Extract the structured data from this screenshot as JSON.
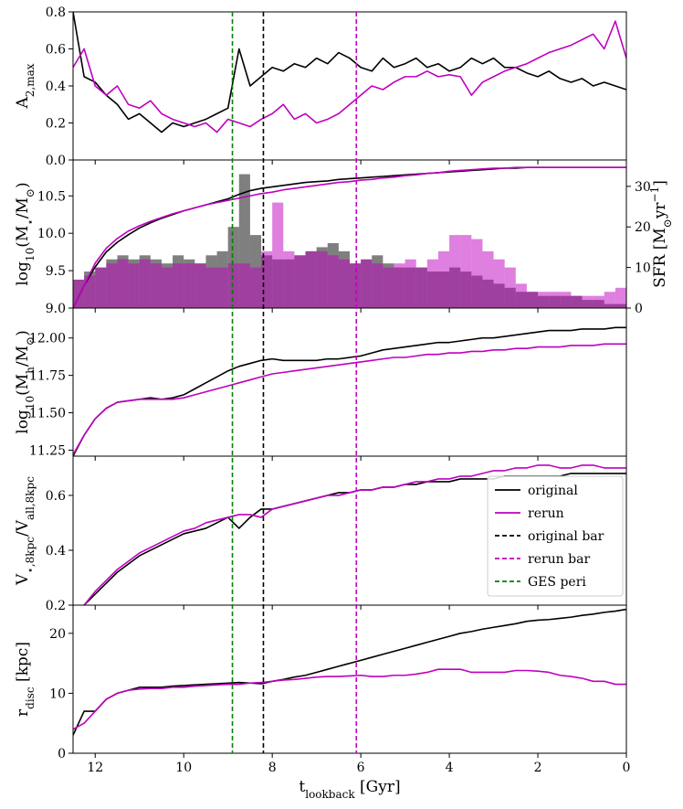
{
  "chart_data": [
    {
      "type": "line",
      "ylabel": [
        "A",
        {
          "text": "2,max",
          "shift": "sub"
        }
      ],
      "xlim": [
        12.5,
        0
      ],
      "ylim": [
        0,
        0.8
      ],
      "yticks": [
        {
          "value": 0,
          "label": "0.0"
        },
        0.2,
        0.4,
        0.6,
        0.8
      ],
      "x": [
        12.5,
        12.25,
        12,
        11.75,
        11.5,
        11.25,
        11,
        10.75,
        10.5,
        10.25,
        10,
        9.75,
        9.5,
        9.25,
        9,
        8.75,
        8.5,
        8.25,
        8,
        7.75,
        7.5,
        7.25,
        7,
        6.75,
        6.5,
        6.25,
        6,
        5.75,
        5.5,
        5.25,
        5,
        4.75,
        4.5,
        4.25,
        4,
        3.75,
        3.5,
        3.25,
        3,
        2.75,
        2.5,
        2.25,
        2,
        1.75,
        1.5,
        1.25,
        1,
        0.75,
        0.5,
        0.25,
        0
      ],
      "series": [
        {
          "color": "#000000",
          "values": [
            0.8,
            0.45,
            0.42,
            0.35,
            0.3,
            0.22,
            0.25,
            0.2,
            0.15,
            0.2,
            0.18,
            0.2,
            0.22,
            0.25,
            0.28,
            0.6,
            0.4,
            0.45,
            0.5,
            0.48,
            0.52,
            0.5,
            0.55,
            0.52,
            0.58,
            0.55,
            0.5,
            0.48,
            0.55,
            0.5,
            0.52,
            0.55,
            0.5,
            0.52,
            0.48,
            0.5,
            0.55,
            0.52,
            0.55,
            0.5,
            0.5,
            0.47,
            0.45,
            0.48,
            0.44,
            0.42,
            0.44,
            0.4,
            0.42,
            0.4,
            0.38
          ]
        },
        {
          "color": "#bf00bf",
          "values": [
            0.5,
            0.6,
            0.4,
            0.35,
            0.4,
            0.3,
            0.28,
            0.32,
            0.25,
            0.22,
            0.2,
            0.18,
            0.2,
            0.15,
            0.22,
            0.2,
            0.18,
            0.22,
            0.25,
            0.3,
            0.22,
            0.25,
            0.2,
            0.22,
            0.25,
            0.3,
            0.35,
            0.4,
            0.38,
            0.42,
            0.45,
            0.45,
            0.48,
            0.45,
            0.46,
            0.45,
            0.35,
            0.42,
            0.45,
            0.48,
            0.5,
            0.52,
            0.55,
            0.58,
            0.6,
            0.62,
            0.65,
            0.68,
            0.6,
            0.75,
            0.55
          ]
        }
      ]
    },
    {
      "type": "combo",
      "ylabel": [
        "log",
        {
          "text": "10",
          "shift": "sub"
        },
        "(M",
        {
          "text": "⋆",
          "shift": "sub"
        },
        "/M",
        {
          "text": "⊙",
          "shift": "sub"
        },
        ")"
      ],
      "y2label": [
        "SFR [M",
        {
          "text": "⊙",
          "shift": "sub"
        },
        "yr",
        {
          "text": "−1",
          "shift": "super"
        },
        "]"
      ],
      "xlim": [
        12.5,
        0
      ],
      "ylim": [
        9.0,
        10.98
      ],
      "y2lim": [
        0,
        36.5
      ],
      "yticks": [
        {
          "value": 9,
          "label": "9.0"
        },
        9.5,
        {
          "value": 10,
          "label": "10.0"
        },
        10.5
      ],
      "y2ticks": [
        0,
        10,
        20,
        30
      ],
      "x": [
        12.5,
        12.25,
        12,
        11.75,
        11.5,
        11.25,
        11,
        10.75,
        10.5,
        10.25,
        10,
        9.75,
        9.5,
        9.25,
        9,
        8.75,
        8.5,
        8.25,
        8,
        7.75,
        7.5,
        7.25,
        7,
        6.75,
        6.5,
        6.25,
        6,
        5.75,
        5.5,
        5.25,
        5,
        4.75,
        4.5,
        4.25,
        4,
        3.75,
        3.5,
        3.25,
        3,
        2.75,
        2.5,
        2.25,
        2,
        1.75,
        1.5,
        1.25,
        1,
        0.75,
        0.5,
        0.25,
        0
      ],
      "bins": [
        12.5,
        12.25,
        12,
        11.75,
        11.5,
        11.25,
        11,
        10.75,
        10.5,
        10.25,
        10,
        9.75,
        9.5,
        9.25,
        9,
        8.75,
        8.5,
        8.25,
        8,
        7.75,
        7.5,
        7.25,
        7,
        6.75,
        6.5,
        6.25,
        6,
        5.75,
        5.5,
        5.25,
        5,
        4.75,
        4.5,
        4.25,
        4,
        3.75,
        3.5,
        3.25,
        3,
        2.75,
        2.5,
        2.25,
        2,
        1.75,
        1.5,
        1.25,
        1,
        0.75,
        0.5,
        0.25,
        0
      ],
      "bar_series": [
        {
          "color": "#000000",
          "axis": "y2",
          "values": [
            7,
            9,
            10,
            12,
            13,
            12,
            13,
            12,
            11,
            13,
            12,
            11,
            13,
            14,
            20,
            33,
            18,
            13,
            12,
            12,
            13,
            14,
            15,
            16,
            14,
            11,
            12,
            13,
            11,
            10,
            10,
            10,
            9,
            9,
            10,
            9,
            8,
            7,
            6,
            5,
            4,
            4,
            3,
            3,
            3,
            3,
            2,
            2,
            1,
            1
          ]
        },
        {
          "color": "#bf00bf",
          "axis": "y2",
          "values": [
            7,
            8,
            10,
            11,
            12,
            11,
            12,
            11,
            10,
            11,
            11,
            11,
            10,
            10,
            11,
            11,
            10,
            14,
            26,
            14,
            13,
            14,
            14,
            13,
            12,
            11,
            12,
            11,
            10,
            11,
            12,
            10,
            12,
            14,
            18,
            18,
            17,
            14,
            12,
            10,
            6,
            4,
            4,
            4,
            4,
            3,
            3,
            3,
            4,
            5
          ]
        }
      ],
      "series": [
        {
          "color": "#000000",
          "values": [
            9.0,
            9.3,
            9.55,
            9.75,
            9.88,
            9.98,
            10.07,
            10.14,
            10.2,
            10.25,
            10.3,
            10.34,
            10.38,
            10.42,
            10.46,
            10.52,
            10.57,
            10.6,
            10.62,
            10.64,
            10.66,
            10.68,
            10.69,
            10.7,
            10.72,
            10.73,
            10.74,
            10.75,
            10.76,
            10.77,
            10.78,
            10.79,
            10.8,
            10.81,
            10.82,
            10.83,
            10.84,
            10.85,
            10.86,
            10.87,
            10.87,
            10.88,
            10.88,
            10.88,
            10.88,
            10.88,
            10.88,
            10.88,
            10.88,
            10.88,
            10.88
          ]
        },
        {
          "color": "#bf00bf",
          "values": [
            9.0,
            9.3,
            9.6,
            9.8,
            9.93,
            10.03,
            10.1,
            10.16,
            10.21,
            10.26,
            10.3,
            10.34,
            10.38,
            10.41,
            10.44,
            10.47,
            10.5,
            10.53,
            10.55,
            10.58,
            10.6,
            10.62,
            10.64,
            10.66,
            10.68,
            10.69,
            10.71,
            10.72,
            10.74,
            10.75,
            10.77,
            10.78,
            10.8,
            10.81,
            10.83,
            10.84,
            10.85,
            10.86,
            10.87,
            10.87,
            10.88,
            10.88,
            10.88,
            10.88,
            10.88,
            10.88,
            10.88,
            10.88,
            10.88,
            10.88,
            10.88
          ]
        }
      ]
    },
    {
      "type": "line",
      "ylabel": [
        "log",
        {
          "text": "10",
          "shift": "sub"
        },
        "(M",
        {
          "text": "h",
          "shift": "sub"
        },
        "/M",
        {
          "text": "⊙",
          "shift": "sub"
        },
        ")"
      ],
      "xlim": [
        12.5,
        0
      ],
      "ylim": [
        11.21,
        12.2
      ],
      "yticks": [
        11.25,
        {
          "value": 11.5,
          "label": "11.50"
        },
        11.75,
        {
          "value": 12,
          "label": "12.00"
        }
      ],
      "x": [
        12.5,
        12.25,
        12,
        11.75,
        11.5,
        11.25,
        11,
        10.75,
        10.5,
        10.25,
        10,
        9.75,
        9.5,
        9.25,
        9,
        8.75,
        8.5,
        8.25,
        8,
        7.75,
        7.5,
        7.25,
        7,
        6.75,
        6.5,
        6.25,
        6,
        5.75,
        5.5,
        5.25,
        5,
        4.75,
        4.5,
        4.25,
        4,
        3.75,
        3.5,
        3.25,
        3,
        2.75,
        2.5,
        2.25,
        2,
        1.75,
        1.5,
        1.25,
        1,
        0.75,
        0.5,
        0.25,
        0
      ],
      "series": [
        {
          "color": "#000000",
          "values": [
            11.21,
            11.35,
            11.46,
            11.53,
            11.57,
            11.58,
            11.59,
            11.6,
            11.59,
            11.6,
            11.62,
            11.66,
            11.7,
            11.74,
            11.78,
            11.81,
            11.83,
            11.85,
            11.86,
            11.85,
            11.85,
            11.85,
            11.85,
            11.86,
            11.86,
            11.87,
            11.88,
            11.9,
            11.92,
            11.93,
            11.94,
            11.95,
            11.96,
            11.97,
            11.97,
            11.98,
            11.99,
            12.0,
            12.0,
            12.01,
            12.02,
            12.03,
            12.04,
            12.05,
            12.05,
            12.05,
            12.06,
            12.06,
            12.06,
            12.07,
            12.07
          ]
        },
        {
          "color": "#bf00bf",
          "values": [
            11.22,
            11.35,
            11.46,
            11.53,
            11.57,
            11.58,
            11.59,
            11.59,
            11.59,
            11.59,
            11.6,
            11.62,
            11.64,
            11.66,
            11.68,
            11.7,
            11.72,
            11.74,
            11.76,
            11.77,
            11.78,
            11.79,
            11.8,
            11.81,
            11.82,
            11.83,
            11.84,
            11.85,
            11.86,
            11.87,
            11.87,
            11.88,
            11.89,
            11.89,
            11.9,
            11.9,
            11.91,
            11.91,
            11.92,
            11.92,
            11.93,
            11.93,
            11.94,
            11.94,
            11.94,
            11.95,
            11.95,
            11.95,
            11.96,
            11.96,
            11.96
          ]
        }
      ]
    },
    {
      "type": "line",
      "ylabel": [
        "V",
        {
          "text": "⋆,8kpc",
          "shift": "sub"
        },
        "/V",
        {
          "text": "all,8kpc",
          "shift": "sub"
        }
      ],
      "xlim": [
        12.5,
        0
      ],
      "ylim": [
        0.2,
        0.743
      ],
      "yticks": [
        0.2,
        0.4,
        0.6
      ],
      "legend": "center right",
      "x": [
        12.5,
        12.25,
        12,
        11.75,
        11.5,
        11.25,
        11,
        10.75,
        10.5,
        10.25,
        10,
        9.75,
        9.5,
        9.25,
        9,
        8.75,
        8.5,
        8.25,
        8,
        7.75,
        7.5,
        7.25,
        7,
        6.75,
        6.5,
        6.25,
        6,
        5.75,
        5.5,
        5.25,
        5,
        4.75,
        4.5,
        4.25,
        4,
        3.75,
        3.5,
        3.25,
        3,
        2.75,
        2.5,
        2.25,
        2,
        1.75,
        1.5,
        1.25,
        1,
        0.75,
        0.5,
        0.25,
        0
      ],
      "series": [
        {
          "name": "original",
          "color": "#000000",
          "values": [
            null,
            0.2,
            0.24,
            0.28,
            0.32,
            0.35,
            0.38,
            0.4,
            0.42,
            0.44,
            0.46,
            0.47,
            0.48,
            0.5,
            0.52,
            0.48,
            0.52,
            0.55,
            0.55,
            0.56,
            0.57,
            0.58,
            0.59,
            0.6,
            0.61,
            0.61,
            0.62,
            0.62,
            0.63,
            0.63,
            0.64,
            0.64,
            0.65,
            0.65,
            0.65,
            0.66,
            0.66,
            0.66,
            0.66,
            0.67,
            0.67,
            0.67,
            0.67,
            0.67,
            0.67,
            0.68,
            0.68,
            0.68,
            0.68,
            0.68,
            0.68
          ]
        },
        {
          "name": "rerun",
          "color": "#bf00bf",
          "values": [
            null,
            0.2,
            0.25,
            0.29,
            0.33,
            0.36,
            0.39,
            0.41,
            0.43,
            0.45,
            0.47,
            0.48,
            0.5,
            0.51,
            0.52,
            0.53,
            0.53,
            0.52,
            0.55,
            0.56,
            0.57,
            0.58,
            0.59,
            0.6,
            0.6,
            0.61,
            0.62,
            0.62,
            0.63,
            0.63,
            0.64,
            0.65,
            0.65,
            0.66,
            0.66,
            0.67,
            0.67,
            0.68,
            0.69,
            0.69,
            0.7,
            0.7,
            0.71,
            0.71,
            0.7,
            0.7,
            0.71,
            0.71,
            0.7,
            0.7,
            0.7
          ]
        }
      ],
      "vlines": [
        {
          "name": "original bar",
          "color": "#000000",
          "x": 8.2
        },
        {
          "name": "rerun bar",
          "color": "#bf00bf",
          "x": 6.1
        },
        {
          "name": "GES peri",
          "color": "#008000",
          "x": 8.9
        }
      ]
    },
    {
      "type": "line",
      "ylabel": [
        "r",
        {
          "text": "disc",
          "shift": "sub"
        },
        " [kpc]"
      ],
      "xlabel": [
        "t",
        {
          "text": "lookback",
          "shift": "sub"
        },
        " [Gyr]"
      ],
      "xlim": [
        12.5,
        0
      ],
      "ylim": [
        0,
        24.7
      ],
      "yticks": [
        0,
        10,
        20
      ],
      "xticks": [
        12,
        10,
        8,
        6,
        4,
        2,
        0
      ],
      "x": [
        12.5,
        12.25,
        12,
        11.75,
        11.5,
        11.25,
        11,
        10.75,
        10.5,
        10.25,
        10,
        9.75,
        9.5,
        9.25,
        9,
        8.75,
        8.5,
        8.25,
        8,
        7.75,
        7.5,
        7.25,
        7,
        6.75,
        6.5,
        6.25,
        6,
        5.75,
        5.5,
        5.25,
        5,
        4.75,
        4.5,
        4.25,
        4,
        3.75,
        3.5,
        3.25,
        3,
        2.75,
        2.5,
        2.25,
        2,
        1.75,
        1.5,
        1.25,
        1,
        0.75,
        0.5,
        0.25,
        0
      ],
      "series": [
        {
          "color": "#000000",
          "values": [
            3,
            7,
            7,
            9,
            10,
            10.5,
            11,
            11,
            11,
            11.2,
            11.3,
            11.4,
            11.5,
            11.6,
            11.7,
            11.8,
            11.7,
            11.6,
            12,
            12.3,
            12.7,
            13,
            13.5,
            14,
            14.5,
            15,
            15.5,
            16,
            16.5,
            17,
            17.5,
            18,
            18.5,
            19,
            19.5,
            20,
            20.3,
            20.7,
            21,
            21.3,
            21.6,
            22,
            22.2,
            22.3,
            22.5,
            22.7,
            23,
            23.2,
            23.5,
            23.7,
            24
          ]
        },
        {
          "color": "#bf00bf",
          "values": [
            4,
            5,
            7,
            9,
            10,
            10.5,
            10.7,
            10.8,
            10.8,
            11,
            11,
            11.2,
            11.3,
            11.4,
            11.5,
            11.5,
            11.7,
            11.8,
            12,
            12.2,
            12.3,
            12.5,
            12.7,
            12.8,
            12.8,
            12.9,
            13,
            12.8,
            12.8,
            13,
            13,
            13.2,
            13.5,
            14,
            14,
            14,
            13.5,
            13.5,
            13.5,
            13.5,
            13.8,
            13.8,
            13.7,
            13.5,
            13,
            12.8,
            12.5,
            12,
            12,
            11.5,
            11.5
          ]
        }
      ]
    }
  ]
}
